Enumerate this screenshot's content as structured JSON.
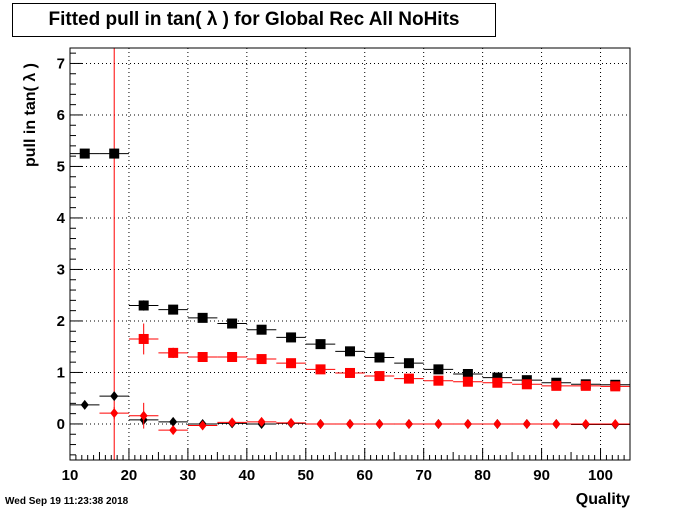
{
  "chart_data": {
    "type": "scatter",
    "title": "Fitted pull in tan( λ ) for Global Rec All NoHits",
    "xlabel": "Quality",
    "ylabel": "pull in tan( λ )",
    "xlim": [
      10,
      105
    ],
    "ylim": [
      -0.7,
      7.3
    ],
    "xticks": [
      10,
      20,
      30,
      40,
      50,
      60,
      70,
      80,
      90,
      100
    ],
    "yticks": [
      0,
      1,
      2,
      3,
      4,
      5,
      6,
      7
    ],
    "grid": true,
    "vline_x": 17.5,
    "vline_color": "#ff0000",
    "x_bin_halfwidth": 2.5,
    "series": [
      {
        "marker": "square",
        "color": "#000000",
        "x": [
          12.5,
          17.5,
          22.5,
          27.5,
          32.5,
          37.5,
          42.5,
          47.5,
          52.5,
          57.5,
          62.5,
          67.5,
          72.5,
          77.5,
          82.5,
          87.5,
          92.5,
          97.5,
          102.5
        ],
        "y": [
          5.25,
          5.25,
          2.3,
          2.22,
          2.06,
          1.95,
          1.83,
          1.68,
          1.55,
          1.41,
          1.29,
          1.18,
          1.06,
          0.97,
          0.9,
          0.85,
          0.8,
          0.77,
          0.76
        ],
        "yerr": [
          0,
          0,
          0.1,
          0.05,
          0.04,
          0.03,
          0.03,
          0.03,
          0.03,
          0.02,
          0.02,
          0.02,
          0.02,
          0.02,
          0.02,
          0.02,
          0.02,
          0.02,
          0.02
        ]
      },
      {
        "marker": "square",
        "color": "#ff0000",
        "x": [
          22.5,
          27.5,
          32.5,
          37.5,
          42.5,
          47.5,
          52.5,
          57.5,
          62.5,
          67.5,
          72.5,
          77.5,
          82.5,
          87.5,
          92.5,
          97.5,
          102.5
        ],
        "y": [
          1.65,
          1.38,
          1.3,
          1.3,
          1.26,
          1.18,
          1.06,
          0.99,
          0.93,
          0.88,
          0.84,
          0.82,
          0.8,
          0.77,
          0.74,
          0.74,
          0.73
        ],
        "yerr": [
          0.3,
          0.1,
          0.05,
          0.04,
          0.04,
          0.03,
          0.03,
          0.02,
          0.02,
          0.02,
          0.02,
          0.02,
          0.02,
          0.02,
          0.02,
          0.02,
          0.02
        ]
      },
      {
        "marker": "diamond",
        "color": "#000000",
        "x": [
          12.5,
          17.5,
          22.5,
          27.5,
          32.5,
          37.5,
          42.5,
          47.5,
          52.5,
          57.5,
          62.5,
          67.5,
          72.5,
          77.5,
          82.5,
          87.5,
          92.5,
          97.5,
          102.5
        ],
        "y": [
          0.37,
          0.54,
          0.08,
          0.04,
          0.0,
          0.01,
          0.0,
          0.01,
          0.0,
          0.0,
          0.0,
          0.0,
          0.0,
          0.0,
          0.0,
          0.0,
          0.0,
          -0.01,
          -0.01
        ],
        "yerr": [
          0,
          0,
          0.08,
          0.03,
          0.02,
          0.02,
          0.01,
          0.01,
          0.01,
          0.01,
          0.01,
          0.01,
          0.01,
          0.01,
          0.01,
          0.01,
          0.01,
          0.01,
          0.01
        ]
      },
      {
        "marker": "diamond",
        "color": "#ff0000",
        "x": [
          17.5,
          22.5,
          27.5,
          32.5,
          37.5,
          42.5,
          47.5,
          52.5,
          57.5,
          62.5,
          67.5,
          72.5,
          77.5,
          82.5,
          87.5,
          92.5,
          97.5,
          102.5
        ],
        "y": [
          0.21,
          0.16,
          -0.12,
          -0.03,
          0.03,
          0.04,
          0.02,
          0.0,
          0.0,
          0.0,
          0.0,
          0.0,
          0.0,
          0.0,
          0.0,
          0.0,
          0.0,
          0.0
        ],
        "yerr": [
          0.12,
          0.25,
          0.06,
          0.03,
          0.02,
          0.02,
          0.02,
          0.01,
          0.01,
          0.01,
          0.01,
          0.01,
          0.01,
          0.01,
          0.01,
          0.01,
          0.01,
          0.01
        ]
      }
    ]
  },
  "footer": {
    "timestamp": "Wed Sep 19 11:23:38 2018"
  }
}
